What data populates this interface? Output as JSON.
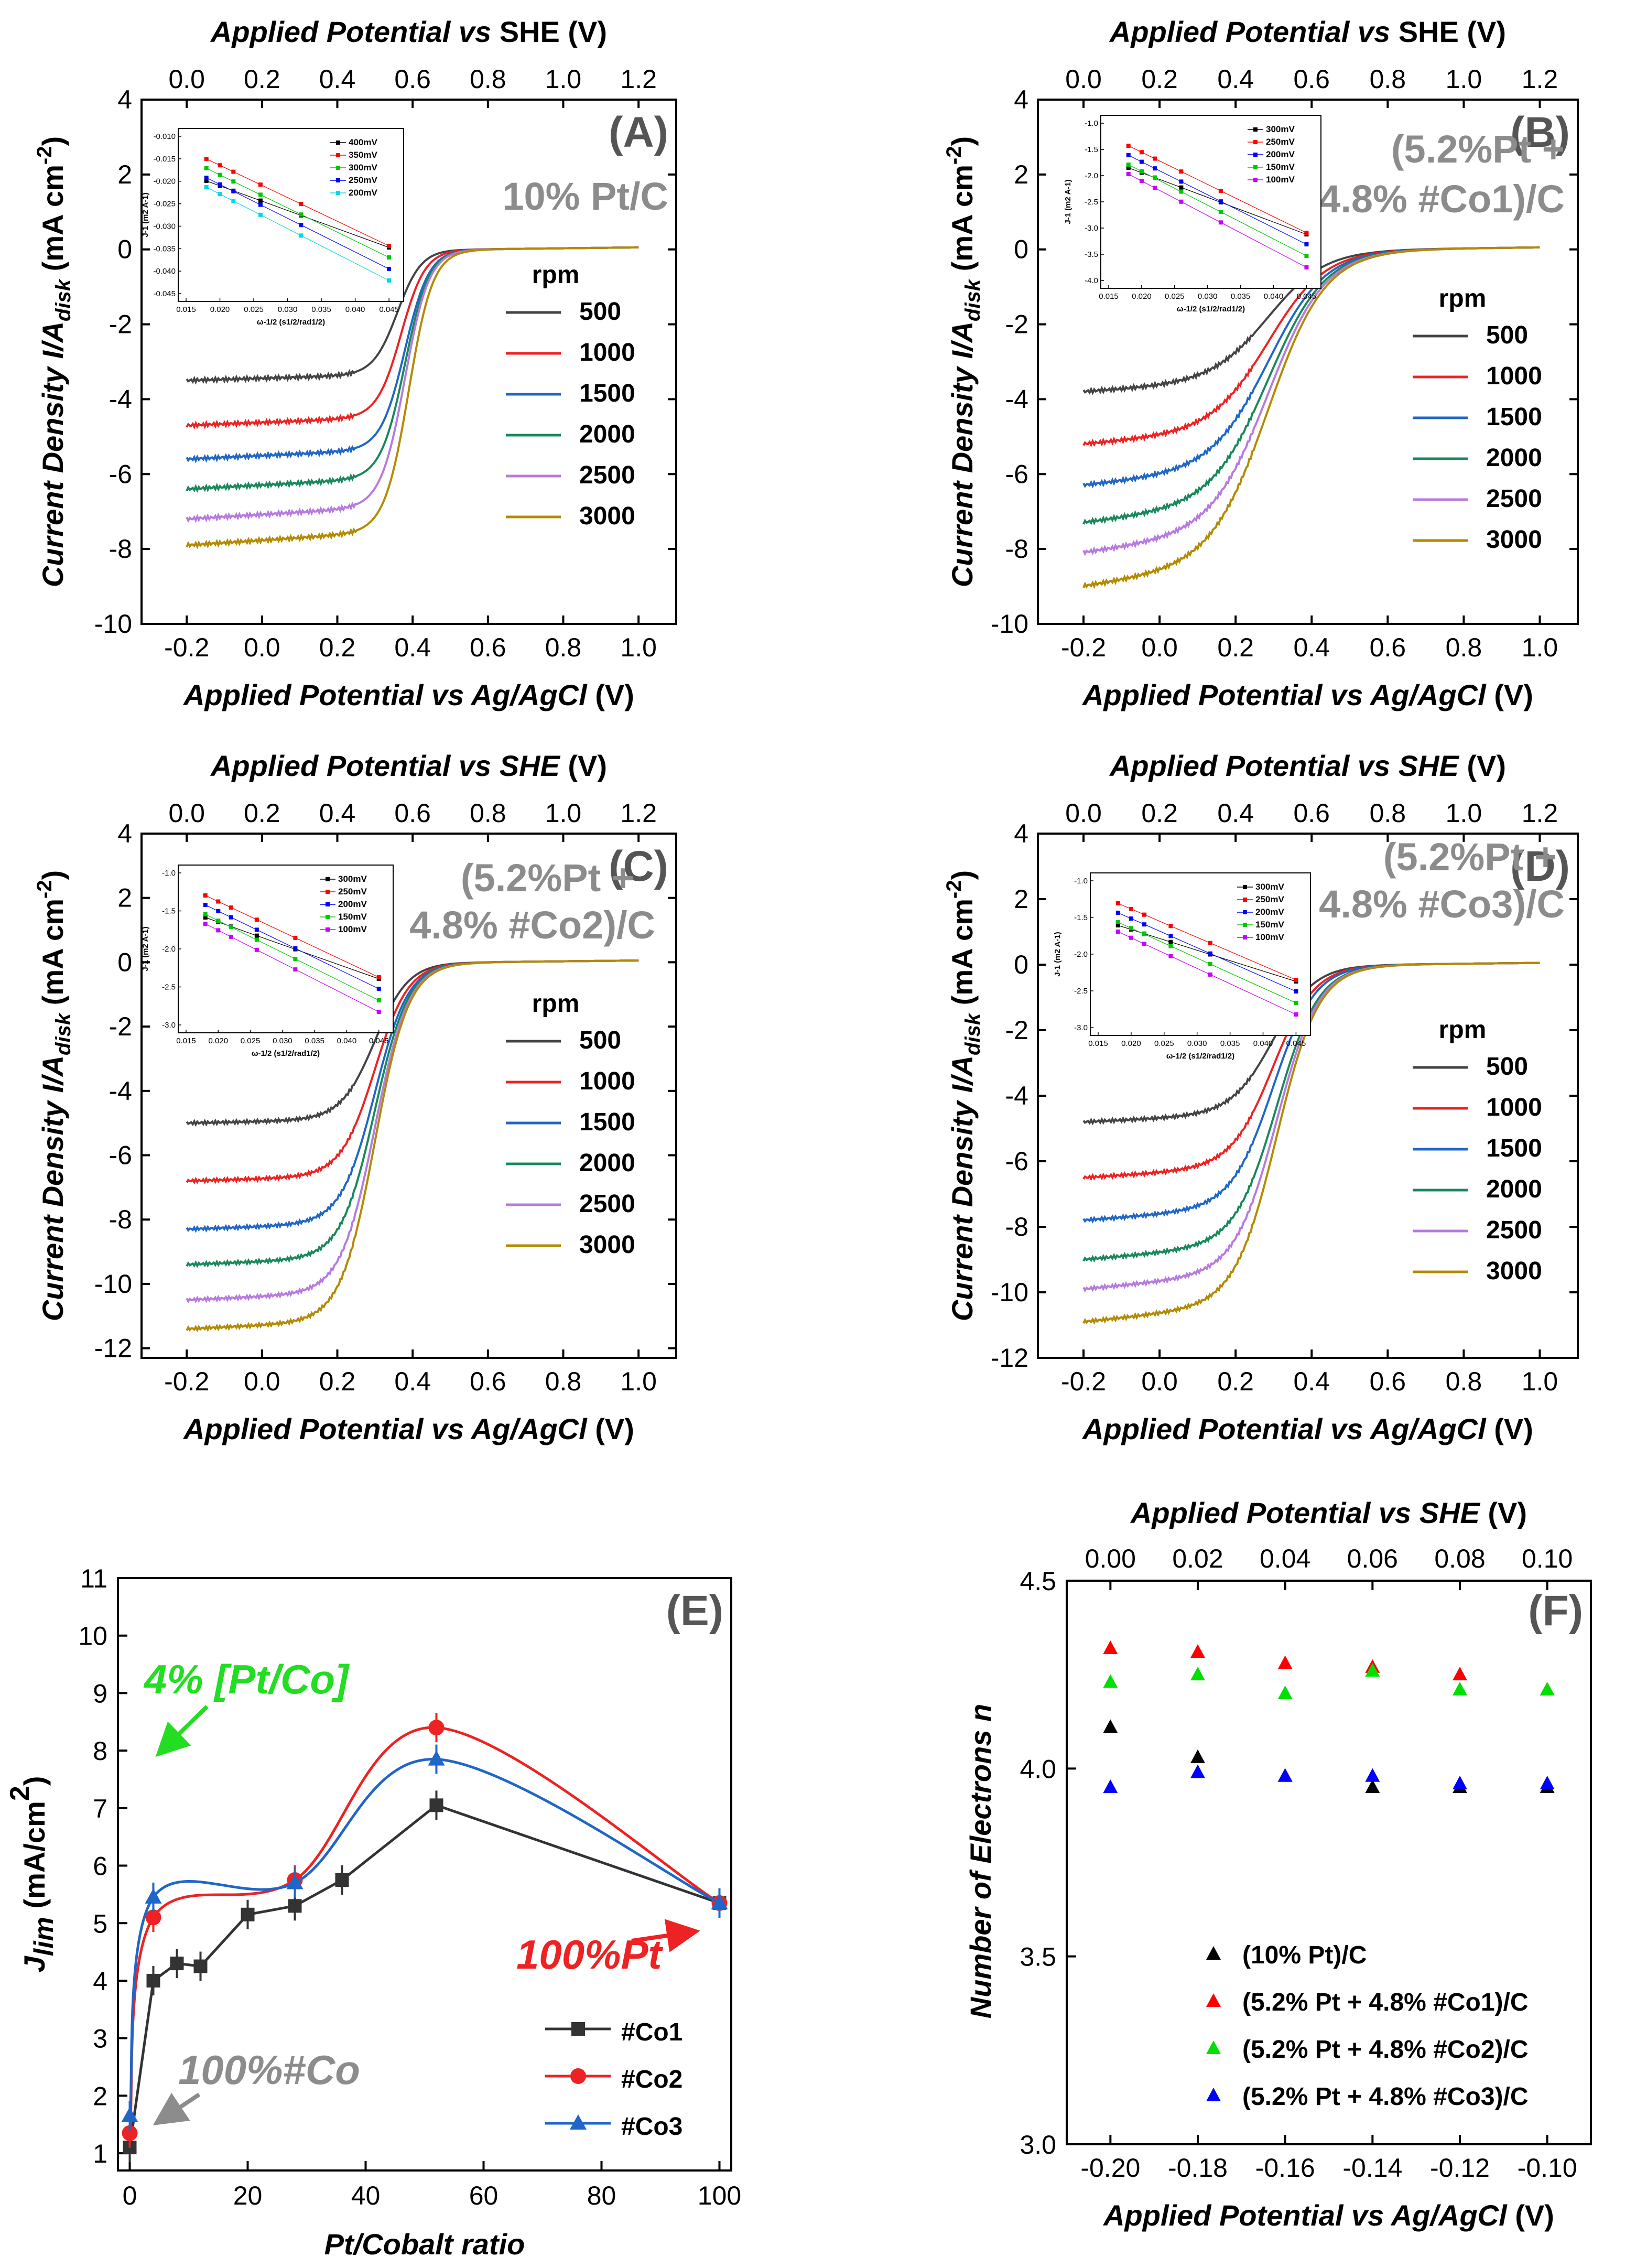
{
  "figure": {
    "panels": {
      "A": {
        "label": "(A)",
        "title": "10% Pt/C",
        "legend_title": "rpm"
      },
      "B": {
        "label": "(B)",
        "title_lines": [
          "(5.2%Pt +",
          "4.8% #Co1)/C"
        ],
        "legend_title": "rpm"
      },
      "C": {
        "label": "(C)",
        "title_lines": [
          "(5.2%Pt +",
          "4.8% #Co2)/C"
        ],
        "legend_title": "rpm"
      },
      "D": {
        "label": "(D)",
        "title_lines": [
          "(5.2%Pt +",
          "4.8% #Co3)/C"
        ],
        "legend_title": "rpm"
      },
      "E": {
        "label": "(E)",
        "annot_green": "4% [Pt/Co]",
        "annot_red": "100%Pt",
        "annot_gray": "100%#Co"
      },
      "F": {
        "label": "(F)"
      }
    },
    "inset_axes": {
      "xlabel": "ω-1/2 (s1/2/rad1/2)",
      "ylabel": "J-1 (m2 A-1)"
    }
  },
  "chart_data": [
    {
      "panel": "A",
      "type": "line",
      "title": "10% Pt/C",
      "xlabel": "Applied Potential vs Ag/AgCl (V)",
      "x2label": "Applied Potential vs SHE (V)",
      "ylabel": "Current Density I/Adisk (mA cm-2)",
      "xlim": [
        -0.32,
        1.1
      ],
      "ylim": [
        -10,
        4
      ],
      "xticks": [
        "-0.2",
        "0.0",
        "0.2",
        "0.4",
        "0.6",
        "0.8",
        "1.0"
      ],
      "x2ticks": [
        "0.0",
        "0.2",
        "0.4",
        "0.6",
        "0.8",
        "1.0",
        "1.2"
      ],
      "yticks": [
        "-10",
        "-8",
        "-6",
        "-4",
        "-2",
        "0",
        "2",
        "4"
      ],
      "legend_title": "rpm",
      "series": [
        {
          "name": "500",
          "color": "#444444",
          "jlim": -3.5
        },
        {
          "name": "1000",
          "color": "#ee2222",
          "jlim": -4.7
        },
        {
          "name": "1500",
          "color": "#1f66c8",
          "jlim": -5.6
        },
        {
          "name": "2000",
          "color": "#19885a",
          "jlim": -6.4
        },
        {
          "name": "2500",
          "color": "#b77ae0",
          "jlim": -7.2
        },
        {
          "name": "3000",
          "color": "#b38a00",
          "jlim": -7.9
        }
      ],
      "inset": {
        "xticks": [
          "0.015",
          "0.020",
          "0.025",
          "0.030",
          "0.035",
          "0.040",
          "0.045"
        ],
        "yticks": [
          "-0.010",
          "-0.015",
          "-0.020",
          "-0.025",
          "-0.030",
          "-0.035",
          "-0.040",
          "-0.045"
        ],
        "series": [
          {
            "name": "400mV",
            "color": "#000000"
          },
          {
            "name": "350mV",
            "color": "#ff0000"
          },
          {
            "name": "300mV",
            "color": "#00c800"
          },
          {
            "name": "250mV",
            "color": "#0000ff"
          },
          {
            "name": "200mV",
            "color": "#00d8e8"
          }
        ]
      }
    },
    {
      "panel": "B",
      "type": "line",
      "title": "(5.2%Pt + 4.8% #Co1)/C",
      "xlabel": "Applied Potential vs Ag/AgCl (V)",
      "x2label": "Applied Potential vs SHE (V)",
      "ylabel": "Current Density I/Adisk (mA cm-2)",
      "xlim": [
        -0.32,
        1.1
      ],
      "ylim": [
        -10,
        4
      ],
      "xticks": [
        "-0.2",
        "0.0",
        "0.2",
        "0.4",
        "0.6",
        "0.8",
        "1.0"
      ],
      "x2ticks": [
        "0.0",
        "0.2",
        "0.4",
        "0.6",
        "0.8",
        "1.0",
        "1.2"
      ],
      "yticks": [
        "-10",
        "-8",
        "-6",
        "-4",
        "-2",
        "0",
        "2",
        "4"
      ],
      "legend_title": "rpm",
      "series": [
        {
          "name": "500",
          "color": "#444444",
          "jlim": -3.8
        },
        {
          "name": "1000",
          "color": "#ee2222",
          "jlim": -5.2
        },
        {
          "name": "1500",
          "color": "#1f66c8",
          "jlim": -6.3
        },
        {
          "name": "2000",
          "color": "#19885a",
          "jlim": -7.3
        },
        {
          "name": "2500",
          "color": "#b77ae0",
          "jlim": -8.1
        },
        {
          "name": "3000",
          "color": "#b38a00",
          "jlim": -9.0
        }
      ],
      "inset": {
        "xticks": [
          "0.015",
          "0.020",
          "0.025",
          "0.030",
          "0.035",
          "0.040",
          "0.045"
        ],
        "yticks": [
          "-1.0",
          "-1.5",
          "-2.0",
          "-2.5",
          "-3.0",
          "-3.5",
          "-4.0"
        ],
        "series": [
          {
            "name": "300mV",
            "color": "#000000"
          },
          {
            "name": "250mV",
            "color": "#ff0000"
          },
          {
            "name": "200mV",
            "color": "#0000ff"
          },
          {
            "name": "150mV",
            "color": "#00c800"
          },
          {
            "name": "100mV",
            "color": "#c800ff"
          }
        ]
      }
    },
    {
      "panel": "C",
      "type": "line",
      "title": "(5.2%Pt + 4.8% #Co2)/C",
      "xlabel": "Applied Potential vs Ag/AgCl (V)",
      "x2label": "Applied Potential vs SHE (V)",
      "ylabel": "Current Density I/Adisk (mA cm-2)",
      "xlim": [
        -0.32,
        1.1
      ],
      "ylim": [
        -12.3,
        4
      ],
      "xticks": [
        "-0.2",
        "0.0",
        "0.2",
        "0.4",
        "0.6",
        "0.8",
        "1.0"
      ],
      "x2ticks": [
        "0.0",
        "0.2",
        "0.4",
        "0.6",
        "0.8",
        "1.0",
        "1.2"
      ],
      "yticks": [
        "-12",
        "-10",
        "-8",
        "-6",
        "-4",
        "-2",
        "0",
        "2",
        "4"
      ],
      "legend_title": "rpm",
      "series": [
        {
          "name": "500",
          "color": "#444444",
          "jlim": -5.0
        },
        {
          "name": "1000",
          "color": "#ee2222",
          "jlim": -6.8
        },
        {
          "name": "1500",
          "color": "#1f66c8",
          "jlim": -8.3
        },
        {
          "name": "2000",
          "color": "#19885a",
          "jlim": -9.4
        },
        {
          "name": "2500",
          "color": "#b77ae0",
          "jlim": -10.5
        },
        {
          "name": "3000",
          "color": "#b38a00",
          "jlim": -11.4
        }
      ],
      "inset": {
        "xticks": [
          "0.015",
          "0.020",
          "0.025",
          "0.030",
          "0.035",
          "0.040",
          "0.045"
        ],
        "yticks": [
          "-1.0",
          "-1.5",
          "-2.0",
          "-2.5",
          "-3.0"
        ],
        "series": [
          {
            "name": "300mV",
            "color": "#000000"
          },
          {
            "name": "250mV",
            "color": "#ff0000"
          },
          {
            "name": "200mV",
            "color": "#0000ff"
          },
          {
            "name": "150mV",
            "color": "#00c800"
          },
          {
            "name": "100mV",
            "color": "#c800ff"
          }
        ]
      }
    },
    {
      "panel": "D",
      "type": "line",
      "title": "(5.2%Pt + 4.8% #Co3)/C",
      "xlabel": "Applied Potential vs Ag/AgCl (V)",
      "x2label": "Applied Potential vs SHE (V)",
      "ylabel": "Current Density I/Adisk (mA cm-2)",
      "xlim": [
        -0.32,
        1.1
      ],
      "ylim": [
        -12,
        4
      ],
      "xticks": [
        "-0.2",
        "0.0",
        "0.2",
        "0.4",
        "0.6",
        "0.8",
        "1.0"
      ],
      "x2ticks": [
        "0.0",
        "0.2",
        "0.4",
        "0.6",
        "0.8",
        "1.0",
        "1.2"
      ],
      "yticks": [
        "-12",
        "-10",
        "-8",
        "-6",
        "-4",
        "-2",
        "0",
        "2",
        "4"
      ],
      "legend_title": "rpm",
      "series": [
        {
          "name": "500",
          "color": "#444444",
          "jlim": -4.8
        },
        {
          "name": "1000",
          "color": "#ee2222",
          "jlim": -6.5
        },
        {
          "name": "1500",
          "color": "#1f66c8",
          "jlim": -7.8
        },
        {
          "name": "2000",
          "color": "#19885a",
          "jlim": -9.0
        },
        {
          "name": "2500",
          "color": "#b77ae0",
          "jlim": -9.9
        },
        {
          "name": "3000",
          "color": "#b38a00",
          "jlim": -10.9
        }
      ],
      "inset": {
        "xticks": [
          "0.015",
          "0.020",
          "0.025",
          "0.030",
          "0.035",
          "0.040",
          "0.045"
        ],
        "yticks": [
          "-1.0",
          "-1.5",
          "-2.0",
          "-2.5",
          "-3.0"
        ],
        "series": [
          {
            "name": "300mV",
            "color": "#000000"
          },
          {
            "name": "250mV",
            "color": "#ff0000"
          },
          {
            "name": "200mV",
            "color": "#0000ff"
          },
          {
            "name": "150mV",
            "color": "#00c800"
          },
          {
            "name": "100mV",
            "color": "#c800ff"
          }
        ]
      }
    },
    {
      "panel": "E",
      "type": "line",
      "xlabel": "Pt/Cobalt ratio",
      "ylabel": "Jlim (mA/cm2)",
      "xlim": [
        -2,
        102
      ],
      "ylim": [
        0.7,
        11
      ],
      "xticks": [
        "0",
        "20",
        "40",
        "60",
        "80",
        "100"
      ],
      "yticks": [
        "1",
        "2",
        "3",
        "4",
        "5",
        "6",
        "7",
        "8",
        "9",
        "10",
        "11"
      ],
      "series": [
        {
          "name": "#Co1",
          "color": "#333333",
          "marker": "square",
          "x": [
            0,
            4,
            8,
            12,
            20,
            28,
            36,
            52,
            100
          ],
          "y": [
            1.1,
            4.0,
            4.3,
            4.25,
            5.15,
            5.3,
            5.75,
            7.05,
            5.35
          ]
        },
        {
          "name": "#Co2",
          "color": "#ee2222",
          "marker": "circle",
          "x": [
            0,
            4,
            28,
            52,
            100
          ],
          "y": [
            1.35,
            5.1,
            5.75,
            8.4,
            5.35
          ]
        },
        {
          "name": "#Co3",
          "color": "#1f66c8",
          "marker": "triangle",
          "x": [
            0,
            4,
            28,
            52,
            100
          ],
          "y": [
            1.65,
            5.45,
            5.7,
            7.85,
            5.35
          ]
        }
      ]
    },
    {
      "panel": "F",
      "type": "scatter",
      "xlabel": "Applied Potential vs Ag/AgCl (V)",
      "x2label": "Applied Potential vs SHE (V)",
      "ylabel": "Number of Electrons n",
      "xlim": [
        -0.21,
        -0.09
      ],
      "ylim": [
        3.0,
        4.5
      ],
      "xticks": [
        "-0.20",
        "-0.18",
        "-0.16",
        "-0.14",
        "-0.12",
        "-0.10"
      ],
      "x2ticks": [
        "0.00",
        "0.02",
        "0.04",
        "0.06",
        "0.08",
        "0.10"
      ],
      "yticks": [
        "3.0",
        "3.5",
        "4.0",
        "4.5"
      ],
      "x": [
        -0.2,
        -0.18,
        -0.16,
        -0.14,
        -0.12,
        -0.1
      ],
      "series": [
        {
          "name": "(10% Pt)/C",
          "color": "#000000",
          "y": [
            4.11,
            4.03,
            3.98,
            3.95,
            3.95,
            3.95
          ]
        },
        {
          "name": "(5.2% Pt + 4.8% #Co1)/C",
          "color": "#ff0000",
          "y": [
            4.32,
            4.31,
            4.28,
            4.27,
            4.25,
            4.21
          ]
        },
        {
          "name": "(5.2% Pt + 4.8% #Co2)/C",
          "color": "#00e000",
          "y": [
            4.23,
            4.25,
            4.2,
            4.26,
            4.21,
            4.21
          ]
        },
        {
          "name": "(5.2% Pt + 4.8% #Co3)/C",
          "color": "#0000ff",
          "y": [
            3.95,
            3.99,
            3.98,
            3.98,
            3.96,
            3.96
          ]
        }
      ]
    }
  ]
}
